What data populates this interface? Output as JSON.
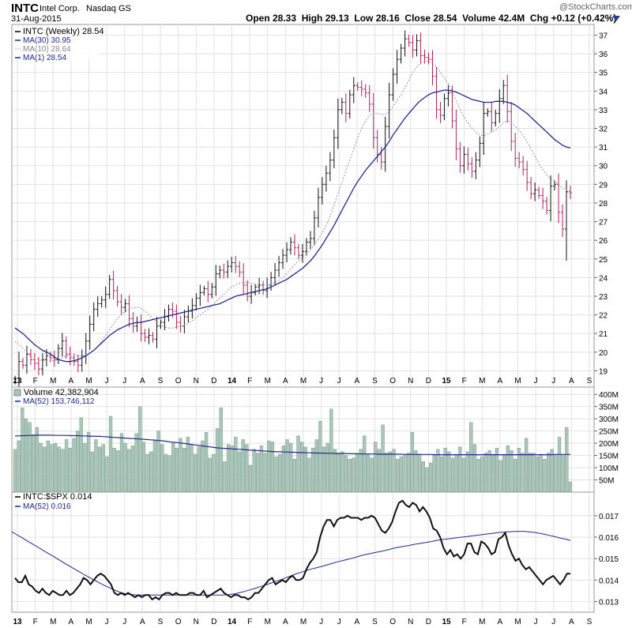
{
  "header": {
    "symbol": "INTC",
    "company": "Intel Corp.",
    "exchange": "Nasdaq GS",
    "date": "31-Aug-2015",
    "watermark": "@StockCharts.com",
    "quote": "Open 28.33  High 29.13  Low 28.16  Close 28.54  Volume 42.4M  Chg +0.12 (+0.42%)",
    "change_arrow_color": "#2a3d8f"
  },
  "colors": {
    "ma30": "#1f2a8c",
    "ma10": "#999999",
    "ma1": "#1f2a8c",
    "up_bar": "#111111",
    "down_bar": "#b0225a",
    "volume_bar": "#a9c6b9",
    "volume_bar_edge": "#6f8f82",
    "grid": "#e2e2e2",
    "ratio_line": "#111111"
  },
  "chart_data": [
    {
      "type": "ohlc",
      "title": "INTC (Weekly) 28.54",
      "legend": [
        "MA(30) 30.95",
        "MA(10) 28.64",
        "MA(1) 28.54"
      ],
      "ylim": [
        18.3,
        37.4
      ],
      "y_ticks": [
        19,
        20,
        21,
        22,
        23,
        24,
        25,
        26,
        27,
        28,
        29,
        30,
        31,
        32,
        33,
        34,
        35,
        36,
        37
      ],
      "x_labels": [
        "13",
        "F",
        "M",
        "A",
        "M",
        "J",
        "J",
        "A",
        "S",
        "O",
        "N",
        "D",
        "14",
        "F",
        "M",
        "A",
        "M",
        "J",
        "J",
        "A",
        "S",
        "O",
        "N",
        "D",
        "15",
        "F",
        "M",
        "A",
        "M",
        "J",
        "J",
        "A",
        "S"
      ],
      "close": [
        18.6,
        19.5,
        19.3,
        19.9,
        19.6,
        19.4,
        19.1,
        19.6,
        19.8,
        19.7,
        19.6,
        20.2,
        20.6,
        19.9,
        19.7,
        19.5,
        19.3,
        19.8,
        20.6,
        21.5,
        22.3,
        22.6,
        22.8,
        23.1,
        23.9,
        23.3,
        22.7,
        22.4,
        22.6,
        21.8,
        21.4,
        21.6,
        21.0,
        20.8,
        20.9,
        20.7,
        21.4,
        21.6,
        21.9,
        22.3,
        22.2,
        21.6,
        21.4,
        21.9,
        22.2,
        22.5,
        22.9,
        23.2,
        23.4,
        23.1,
        23.5,
        24.2,
        24.4,
        24.3,
        24.6,
        24.8,
        24.6,
        24.3,
        23.6,
        23.0,
        23.2,
        23.5,
        23.6,
        23.3,
        23.6,
        24.0,
        24.4,
        24.8,
        25.2,
        25.5,
        25.9,
        25.6,
        25.2,
        25.4,
        25.9,
        26.1,
        27.2,
        28.3,
        29.0,
        29.6,
        30.3,
        31.5,
        33.0,
        33.4,
        32.8,
        33.8,
        34.3,
        34.2,
        34.1,
        33.9,
        33.3,
        31.5,
        30.6,
        30.2,
        32.1,
        33.8,
        34.9,
        35.7,
        36.3,
        36.8,
        36.6,
        36.2,
        36.7,
        35.9,
        35.8,
        35.7,
        34.8,
        33.0,
        32.7,
        33.6,
        33.9,
        32.4,
        30.9,
        30.0,
        30.6,
        30.1,
        29.7,
        30.3,
        31.2,
        32.8,
        32.9,
        32.3,
        32.8,
        33.6,
        34.3,
        32.9,
        31.3,
        30.4,
        30.2,
        29.8,
        29.1,
        28.5,
        28.7,
        28.4,
        28.1,
        27.6,
        28.9,
        29.0,
        27.5,
        26.6,
        28.6,
        28.54
      ],
      "ma30": [
        21.3,
        21.15,
        21.0,
        20.8,
        20.6,
        20.4,
        20.25,
        20.1,
        20.0,
        19.9,
        19.75,
        19.6,
        19.55,
        19.5,
        19.5,
        19.55,
        19.6,
        19.7,
        19.8,
        19.95,
        20.1,
        20.3,
        20.5,
        20.7,
        20.9,
        21.05,
        21.2,
        21.3,
        21.4,
        21.5,
        21.55,
        21.6,
        21.6,
        21.65,
        21.7,
        21.75,
        21.8,
        21.85,
        21.9,
        21.95,
        22.0,
        22.05,
        22.1,
        22.15,
        22.2,
        22.25,
        22.3,
        22.35,
        22.4,
        22.45,
        22.5,
        22.55,
        22.6,
        22.7,
        22.8,
        22.9,
        23.0,
        23.05,
        23.1,
        23.15,
        23.2,
        23.25,
        23.3,
        23.35,
        23.4,
        23.5,
        23.6,
        23.7,
        23.8,
        23.9,
        24.05,
        24.2,
        24.35,
        24.5,
        24.7,
        24.9,
        25.15,
        25.45,
        25.75,
        26.1,
        26.45,
        26.8,
        27.2,
        27.6,
        28.0,
        28.4,
        28.8,
        29.15,
        29.45,
        29.75,
        30.0,
        30.25,
        30.5,
        30.75,
        31.0,
        31.3,
        31.65,
        31.95,
        32.25,
        32.55,
        32.8,
        33.05,
        33.3,
        33.5,
        33.65,
        33.8,
        33.9,
        33.95,
        34.0,
        34.05,
        34.05,
        34.0,
        33.95,
        33.85,
        33.75,
        33.65,
        33.55,
        33.5,
        33.45,
        33.4,
        33.4,
        33.4,
        33.45,
        33.45,
        33.45,
        33.4,
        33.35,
        33.25,
        33.1,
        32.95,
        32.8,
        32.6,
        32.4,
        32.2,
        32.0,
        31.8,
        31.6,
        31.4,
        31.25,
        31.1,
        31.0,
        30.95
      ],
      "ma10": [
        20.6,
        20.4,
        20.2,
        20.0,
        19.8,
        19.7,
        19.6,
        19.55,
        19.5,
        19.5,
        19.55,
        19.6,
        19.7,
        19.8,
        19.85,
        19.85,
        19.8,
        19.8,
        19.85,
        19.95,
        20.1,
        20.3,
        20.6,
        20.9,
        21.2,
        21.5,
        21.8,
        22.0,
        22.2,
        22.3,
        22.4,
        22.4,
        22.35,
        22.2,
        22.0,
        21.8,
        21.6,
        21.45,
        21.35,
        21.3,
        21.3,
        21.35,
        21.4,
        21.45,
        21.55,
        21.7,
        21.85,
        22.0,
        22.15,
        22.3,
        22.5,
        22.7,
        22.9,
        23.1,
        23.3,
        23.5,
        23.6,
        23.7,
        23.75,
        23.75,
        23.7,
        23.65,
        23.6,
        23.6,
        23.6,
        23.65,
        23.75,
        23.85,
        24.0,
        24.2,
        24.45,
        24.7,
        24.9,
        25.1,
        25.3,
        25.5,
        25.75,
        26.05,
        26.4,
        26.8,
        27.3,
        27.9,
        28.5,
        29.1,
        29.7,
        30.3,
        30.9,
        31.5,
        32.0,
        32.4,
        32.7,
        32.8,
        32.8,
        32.75,
        32.75,
        32.9,
        33.2,
        33.5,
        33.8,
        34.2,
        34.6,
        35.0,
        35.3,
        35.5,
        35.6,
        35.6,
        35.5,
        35.3,
        35.0,
        34.7,
        34.4,
        34.0,
        33.5,
        33.0,
        32.6,
        32.3,
        32.0,
        31.8,
        31.65,
        31.6,
        31.7,
        31.8,
        31.9,
        32.1,
        32.3,
        32.4,
        32.3,
        32.1,
        31.9,
        31.6,
        31.3,
        30.9,
        30.5,
        30.1,
        29.8,
        29.5,
        29.3,
        29.2,
        29.0,
        28.8,
        28.7,
        28.64
      ]
    },
    {
      "type": "bar",
      "title": "Volume 42,382,904",
      "legend": [
        "MA(52) 153,746,112"
      ],
      "ylim": [
        0,
        420
      ],
      "unit": "M",
      "y_ticks": [
        50,
        100,
        150,
        200,
        250,
        300,
        350,
        400
      ],
      "y_tick_labels": [
        "50M",
        "100M",
        "150M",
        "200M",
        "250M",
        "300M",
        "350M",
        "400M"
      ],
      "values": [
        175,
        210,
        345,
        300,
        285,
        235,
        265,
        200,
        185,
        210,
        195,
        200,
        185,
        175,
        215,
        180,
        220,
        250,
        305,
        200,
        245,
        165,
        215,
        185,
        195,
        145,
        310,
        180,
        170,
        240,
        200,
        175,
        190,
        240,
        350,
        205,
        155,
        165,
        210,
        250,
        195,
        155,
        150,
        200,
        180,
        220,
        180,
        225,
        195,
        155,
        185,
        210,
        245,
        140,
        155,
        260,
        345,
        125,
        195,
        190,
        225,
        165,
        215,
        195,
        110,
        175,
        160,
        190,
        160,
        210,
        205,
        145,
        155,
        190,
        215,
        200,
        135,
        230,
        205,
        185,
        140,
        180,
        215,
        290,
        185,
        200,
        340,
        175,
        160,
        165,
        150,
        135,
        140,
        155,
        175,
        230,
        155,
        140,
        205,
        175,
        275,
        160,
        165,
        175,
        135,
        145,
        155,
        160,
        245,
        170,
        155,
        125,
        100,
        120,
        155,
        175,
        145,
        180,
        165,
        140,
        155,
        185,
        140,
        165,
        285,
        195,
        135,
        145,
        160,
        170,
        155,
        180,
        130,
        150,
        190,
        170,
        135,
        180,
        160,
        220,
        160,
        160,
        145,
        155,
        135,
        160,
        175,
        155,
        225,
        150,
        265,
        42
      ],
      "ma52": [
        230,
        230,
        231,
        231,
        232,
        232,
        233,
        233,
        233,
        233,
        233,
        232,
        232,
        232,
        232,
        231,
        231,
        231,
        230,
        230,
        229,
        229,
        228,
        228,
        227,
        226,
        225,
        224,
        223,
        222,
        221,
        220,
        219,
        218,
        217,
        216,
        215,
        214,
        213,
        211,
        210,
        208,
        206,
        204,
        203,
        201,
        199,
        197,
        195,
        193,
        191,
        189,
        187,
        185,
        183,
        181,
        180,
        179,
        178,
        177,
        176,
        175,
        174,
        173,
        172,
        171,
        170,
        169,
        168,
        167,
        166,
        165,
        165,
        164,
        164,
        163,
        163,
        162,
        162,
        161,
        161,
        160,
        160,
        160,
        159,
        159,
        159,
        158,
        158,
        158,
        158,
        157,
        157,
        157,
        156,
        156,
        156,
        156,
        156,
        155,
        155,
        155,
        155,
        155,
        155,
        155,
        154,
        154,
        154,
        154,
        154,
        154,
        154,
        154,
        153,
        153,
        153,
        153,
        153,
        153,
        153,
        153,
        153,
        153,
        153,
        153,
        153,
        153,
        153,
        153,
        153,
        153,
        153,
        153,
        153,
        153,
        153,
        153,
        153,
        153,
        153,
        153,
        153,
        153,
        153,
        153,
        153,
        154,
        154,
        154,
        154,
        154
      ]
    },
    {
      "type": "line",
      "title": "INTC:$SPX 0.014",
      "legend": [
        "MA(52) 0.016"
      ],
      "ylim": [
        0.01265,
        0.01795
      ],
      "y_ticks": [
        0.013,
        0.014,
        0.015,
        0.016,
        0.017
      ],
      "y_tick_labels": [
        "0.013",
        "0.014",
        "0.015",
        "0.016",
        "0.017"
      ],
      "ratio": [
        0.0141,
        0.0139,
        0.0139,
        0.0142,
        0.0138,
        0.0137,
        0.0135,
        0.0134,
        0.0136,
        0.0134,
        0.0133,
        0.0135,
        0.0134,
        0.0133,
        0.0133,
        0.0135,
        0.0133,
        0.0134,
        0.0136,
        0.0138,
        0.0141,
        0.014,
        0.0138,
        0.014,
        0.0142,
        0.0143,
        0.0142,
        0.014,
        0.0138,
        0.0134,
        0.0133,
        0.0134,
        0.0133,
        0.0134,
        0.0133,
        0.0132,
        0.0133,
        0.0132,
        0.0133,
        0.0133,
        0.0131,
        0.0132,
        0.0131,
        0.0133,
        0.0134,
        0.0134,
        0.0133,
        0.0134,
        0.0133,
        0.0133,
        0.0133,
        0.0134,
        0.0134,
        0.0133,
        0.0133,
        0.0135,
        0.0132,
        0.0133,
        0.0134,
        0.0135,
        0.0136,
        0.0134,
        0.0133,
        0.0132,
        0.0133,
        0.0133,
        0.0132,
        0.0132,
        0.0131,
        0.0132,
        0.0134,
        0.0134,
        0.0136,
        0.0138,
        0.014,
        0.0141,
        0.0138,
        0.0139,
        0.014,
        0.0139,
        0.0141,
        0.0142,
        0.014,
        0.014,
        0.0141,
        0.0145,
        0.0148,
        0.015,
        0.0153,
        0.016,
        0.0165,
        0.0168,
        0.0168,
        0.0165,
        0.0168,
        0.0169,
        0.0169,
        0.017,
        0.0169,
        0.0169,
        0.0169,
        0.0168,
        0.0169,
        0.0169,
        0.017,
        0.0169,
        0.0166,
        0.0163,
        0.0162,
        0.0164,
        0.0167,
        0.0172,
        0.0176,
        0.0177,
        0.0175,
        0.0174,
        0.0176,
        0.0175,
        0.0172,
        0.0174,
        0.0172,
        0.0169,
        0.0164,
        0.0163,
        0.016,
        0.0155,
        0.0152,
        0.0154,
        0.0151,
        0.0152,
        0.015,
        0.0152,
        0.0157,
        0.0157,
        0.0153,
        0.0152,
        0.0158,
        0.0157,
        0.0155,
        0.0152,
        0.0153,
        0.0159,
        0.016,
        0.0162,
        0.0156,
        0.0152,
        0.0149,
        0.015,
        0.0147,
        0.0145,
        0.0146,
        0.0144,
        0.0142,
        0.014,
        0.0138,
        0.014,
        0.0141,
        0.0142,
        0.014,
        0.0138,
        0.014,
        0.0143,
        0.0143
      ],
      "ma52": [
        0.01625,
        0.01611,
        0.01597,
        0.01582,
        0.01568,
        0.01554,
        0.01539,
        0.01525,
        0.01511,
        0.01496,
        0.01481,
        0.01467,
        0.01453,
        0.01439,
        0.01425,
        0.01412,
        0.01399,
        0.01386,
        0.01374,
        0.01363,
        0.01352,
        0.01342,
        0.01336,
        0.01333,
        0.01331,
        0.0133,
        0.0133,
        0.0133,
        0.0133,
        0.0133,
        0.0133,
        0.0133,
        0.0133,
        0.0133,
        0.0133,
        0.0133,
        0.0133,
        0.0133,
        0.0133,
        0.0133,
        0.0133,
        0.0133,
        0.01332,
        0.01336,
        0.01341,
        0.01347,
        0.01354,
        0.01361,
        0.01369,
        0.01377,
        0.01385,
        0.01393,
        0.01402,
        0.01411,
        0.0142,
        0.01429,
        0.01437,
        0.01445,
        0.01452,
        0.01458,
        0.01464,
        0.01471,
        0.01478,
        0.01485,
        0.01491,
        0.01497,
        0.01503,
        0.0151,
        0.01517,
        0.01522,
        0.01527,
        0.01532,
        0.01537,
        0.01543,
        0.01549,
        0.01554,
        0.01558,
        0.01562,
        0.01567,
        0.01571,
        0.01575,
        0.01579,
        0.01584,
        0.01588,
        0.01591,
        0.01594,
        0.01597,
        0.016,
        0.01603,
        0.01606,
        0.01609,
        0.01612,
        0.01615,
        0.01618,
        0.01621,
        0.01623,
        0.01625,
        0.01626,
        0.01627,
        0.01627,
        0.01625,
        0.01622,
        0.01618,
        0.01613,
        0.01608,
        0.01602,
        0.01596,
        0.01591,
        0.01585
      ]
    }
  ]
}
